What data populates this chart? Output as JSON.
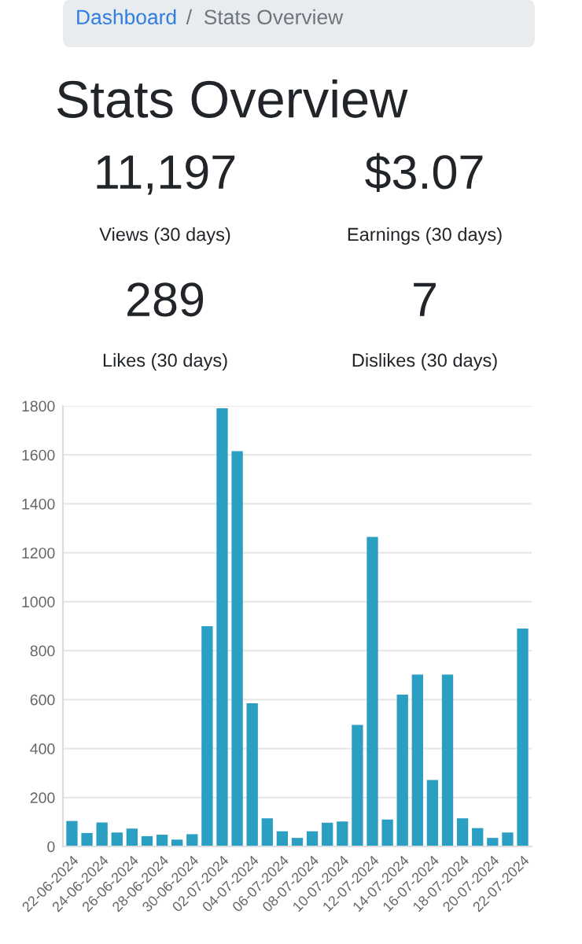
{
  "chart_data": [
    {
      "type": "other",
      "title": "Stats Overview",
      "annotations": [
        "Dashboard",
        "/",
        "Stats Overview",
        "11,197",
        "Views (30 days)",
        "$3.07",
        "Earnings (30 days)",
        "289",
        "Likes (30 days)",
        "7",
        "Dislikes (30 days)"
      ]
    },
    {
      "type": "bar",
      "categories": [
        "22-06-2024",
        null,
        "24-06-2024",
        null,
        "26-06-2024",
        null,
        "28-06-2024",
        null,
        "30-06-2024",
        null,
        "02-07-2024",
        null,
        "04-07-2024",
        null,
        "06-07-2024",
        null,
        "08-07-2024",
        null,
        "10-07-2024",
        null,
        "12-07-2024",
        null,
        "14-07-2024",
        null,
        "16-07-2024",
        null,
        "18-07-2024",
        null,
        "20-07-2024",
        null,
        "22-07-2024"
      ],
      "values": [
        104,
        55,
        98,
        57,
        73,
        42,
        48,
        28,
        50,
        900,
        1790,
        1615,
        585,
        115,
        62,
        35,
        62,
        97,
        102,
        497,
        1265,
        110,
        620,
        702,
        272,
        702,
        115,
        75,
        35,
        57,
        890
      ],
      "color": "#2b9fc2",
      "ylim": [
        0,
        1800
      ],
      "yticks": [
        0,
        200,
        400,
        600,
        800,
        1000,
        1200,
        1400,
        1600,
        1800
      ],
      "grid": "y"
    }
  ]
}
